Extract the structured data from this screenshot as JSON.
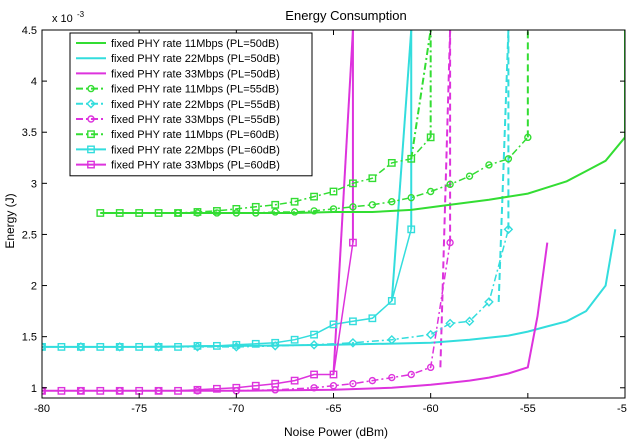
{
  "chart_data": {
    "type": "line",
    "title": "Energy Consumption",
    "xlabel": "Noise Power (dBm)",
    "ylabel": "Energy (J)",
    "xlim": [
      -80,
      -50
    ],
    "ylim": [
      0.0009,
      0.0045
    ],
    "y_exponent_label": "x 10",
    "y_exponent_value": "-3",
    "x_ticks": [
      -80,
      -75,
      -70,
      -65,
      -60,
      -55,
      -50
    ],
    "x_tick_labels": [
      "-80",
      "-75",
      "-70",
      "-65",
      "-60",
      "-55",
      "-50"
    ],
    "y_ticks": [
      0.001,
      0.0015,
      0.002,
      0.0025,
      0.003,
      0.0035,
      0.004,
      0.0045
    ],
    "y_tick_labels": [
      "1",
      "1.5",
      "2",
      "2.5",
      "3",
      "3.5",
      "4",
      "4.5"
    ],
    "grid": false,
    "legend_position": "top-left",
    "series": [
      {
        "name": "fixed PHY rate 11Mbps (PL=50dB)",
        "color": "#33dd33",
        "dash": "solid",
        "marker": "none",
        "x": [
          -77,
          -75,
          -73,
          -71,
          -69,
          -67,
          -65,
          -63,
          -61,
          -59,
          -57,
          -55,
          -54,
          -53,
          -52,
          -51,
          -50
        ],
        "y": [
          0.00271,
          0.00271,
          0.00271,
          0.00271,
          0.00271,
          0.00271,
          0.00272,
          0.00272,
          0.00274,
          0.00279,
          0.00284,
          0.0029,
          0.00296,
          0.00302,
          0.00312,
          0.00322,
          0.00345
        ]
      },
      {
        "name": "fixed PHY rate 22Mbps (PL=50dB)",
        "color": "#33dddd",
        "dash": "solid",
        "marker": "none",
        "x": [
          -80,
          -75,
          -70,
          -65,
          -60,
          -58,
          -56,
          -55,
          -54,
          -53,
          -52,
          -51,
          -50.5
        ],
        "y": [
          0.0014,
          0.0014,
          0.00141,
          0.00142,
          0.00144,
          0.00147,
          0.00151,
          0.00155,
          0.0016,
          0.00165,
          0.00175,
          0.002,
          0.00255
        ]
      },
      {
        "name": "fixed PHY rate 33Mbps (PL=50dB)",
        "color": "#dd33dd",
        "dash": "solid",
        "marker": "none",
        "x": [
          -80,
          -75,
          -70,
          -65,
          -62,
          -60,
          -59,
          -58,
          -57,
          -56,
          -55,
          -54.5,
          -54
        ],
        "y": [
          0.00097,
          0.00097,
          0.00097,
          0.00098,
          0.001,
          0.00103,
          0.00105,
          0.00107,
          0.0011,
          0.00114,
          0.0012,
          0.0017,
          0.00242
        ]
      },
      {
        "name": "fixed PHY rate 11Mbps (PL=55dB)",
        "color": "#33dd33",
        "dash": "dashdot",
        "marker": "circle",
        "x": [
          -73,
          -72,
          -71,
          -70,
          -69,
          -68,
          -67,
          -66,
          -65,
          -64,
          -63,
          -62,
          -61,
          -60,
          -59,
          -58,
          -57,
          -56,
          -55
        ],
        "y": [
          0.00271,
          0.00271,
          0.00271,
          0.00271,
          0.00271,
          0.00272,
          0.00272,
          0.00273,
          0.00275,
          0.00277,
          0.00279,
          0.00282,
          0.00286,
          0.00292,
          0.00299,
          0.00307,
          0.00318,
          0.00324,
          0.00345
        ]
      },
      {
        "name": "fixed PHY rate 22Mbps (PL=55dB)",
        "color": "#33dddd",
        "dash": "dashdot",
        "marker": "diamond",
        "x": [
          -80,
          -78,
          -76,
          -74,
          -72,
          -70,
          -68,
          -66,
          -64,
          -62,
          -60,
          -59,
          -58,
          -57,
          -56
        ],
        "y": [
          0.0014,
          0.0014,
          0.0014,
          0.0014,
          0.0014,
          0.0014,
          0.00141,
          0.00142,
          0.00144,
          0.00147,
          0.00152,
          0.00163,
          0.00165,
          0.00184,
          0.00255
        ]
      },
      {
        "name": "fixed PHY rate 33Mbps (PL=55dB)",
        "color": "#dd33dd",
        "dash": "dashdot",
        "marker": "circle",
        "x": [
          -80,
          -78,
          -76,
          -74,
          -72,
          -70,
          -68,
          -66,
          -65,
          -64,
          -63,
          -62,
          -61,
          -60,
          -59
        ],
        "y": [
          0.00097,
          0.00097,
          0.00097,
          0.00097,
          0.00097,
          0.00097,
          0.00098,
          0.001,
          0.00102,
          0.00104,
          0.00107,
          0.0011,
          0.00113,
          0.0012,
          0.00242
        ]
      },
      {
        "name": "fixed PHY rate 11Mbps (PL=60dB)",
        "color": "#33dd33",
        "dash": "dashdot",
        "marker": "square",
        "x": [
          -77,
          -76,
          -75,
          -74,
          -73,
          -72,
          -71,
          -70,
          -69,
          -68,
          -67,
          -66,
          -65,
          -64,
          -63,
          -62,
          -61,
          -60
        ],
        "y": [
          0.00271,
          0.00271,
          0.00271,
          0.00271,
          0.00271,
          0.00272,
          0.00273,
          0.00275,
          0.00277,
          0.00279,
          0.00282,
          0.00287,
          0.00292,
          0.003,
          0.00305,
          0.0032,
          0.00324,
          0.00345
        ]
      },
      {
        "name": "fixed PHY rate 22Mbps (PL=60dB)",
        "color": "#33dddd",
        "dash": "solid",
        "marker": "square",
        "x": [
          -80,
          -79,
          -78,
          -77,
          -76,
          -75,
          -74,
          -73,
          -72,
          -71,
          -70,
          -69,
          -68,
          -67,
          -66,
          -65,
          -64,
          -63,
          -62,
          -61
        ],
        "y": [
          0.0014,
          0.0014,
          0.0014,
          0.0014,
          0.0014,
          0.0014,
          0.0014,
          0.0014,
          0.00141,
          0.00141,
          0.00142,
          0.00143,
          0.00144,
          0.00147,
          0.00152,
          0.00162,
          0.00165,
          0.00168,
          0.00185,
          0.00255
        ]
      },
      {
        "name": "fixed PHY rate 33Mbps (PL=60dB)",
        "color": "#dd33dd",
        "dash": "solid",
        "marker": "square",
        "x": [
          -80,
          -79,
          -78,
          -77,
          -76,
          -75,
          -74,
          -73,
          -72,
          -71,
          -70,
          -69,
          -68,
          -67,
          -66,
          -65,
          -64
        ],
        "y": [
          0.00097,
          0.00097,
          0.00097,
          0.00097,
          0.00097,
          0.00097,
          0.00097,
          0.00097,
          0.00098,
          0.00099,
          0.001,
          0.00102,
          0.00104,
          0.00107,
          0.00113,
          0.00113,
          0.00242
        ]
      }
    ],
    "vertical_jumps": [
      {
        "series": 0,
        "color": "#33dd33",
        "dash": "solid",
        "x": [
          -50,
          -50
        ],
        "y": [
          0.00345,
          0.0045
        ]
      },
      {
        "series": 1,
        "color": "#33dddd",
        "dash": "solid",
        "x": [
          -50.5,
          -50.5
        ],
        "y": [
          0.00255,
          0.00255
        ]
      },
      {
        "series": 2,
        "color": "#dd33dd",
        "dash": "solid",
        "x": [
          -54,
          -54
        ],
        "y": [
          0.00242,
          0.00242
        ]
      },
      {
        "series": 3,
        "color": "#33dd33",
        "dash": "dashed",
        "x": [
          -55,
          -55
        ],
        "y": [
          0.00345,
          0.0045
        ]
      },
      {
        "series": 4,
        "color": "#33dddd",
        "dash": "dashed",
        "x": [
          -56,
          -56
        ],
        "y": [
          0.00255,
          0.0045
        ]
      },
      {
        "series": 5,
        "color": "#dd33dd",
        "dash": "dashed",
        "x": [
          -59,
          -59
        ],
        "y": [
          0.00242,
          0.0045
        ]
      },
      {
        "series": 6,
        "color": "#33dd33",
        "dash": "dashdot",
        "x": [
          -60,
          -60
        ],
        "y": [
          0.00345,
          0.0045
        ]
      },
      {
        "series": 7,
        "color": "#33dddd",
        "dash": "solid",
        "x": [
          -61,
          -61
        ],
        "y": [
          0.00255,
          0.0045
        ]
      },
      {
        "series": 8,
        "color": "#dd33dd",
        "dash": "solid",
        "x": [
          -64,
          -64
        ],
        "y": [
          0.00242,
          0.0045
        ]
      },
      {
        "series": 8,
        "color": "#dd33dd",
        "dash": "solid",
        "x": [
          -65,
          -64
        ],
        "y": [
          0.00113,
          0.0045
        ]
      },
      {
        "series": 7,
        "color": "#33dddd",
        "dash": "solid",
        "x": [
          -62,
          -61
        ],
        "y": [
          0.00185,
          0.0045
        ]
      },
      {
        "series": 6,
        "color": "#33dd33",
        "dash": "dashdot",
        "x": [
          -61,
          -60
        ],
        "y": [
          0.00324,
          0.0045
        ]
      },
      {
        "series": 5,
        "color": "#dd33dd",
        "dash": "dashed",
        "x": [
          -59.5,
          -59
        ],
        "y": [
          0.0012,
          0.0045
        ]
      },
      {
        "series": 4,
        "color": "#33dddd",
        "dash": "dashed",
        "x": [
          -56.5,
          -56
        ],
        "y": [
          0.00184,
          0.0045
        ]
      }
    ]
  }
}
